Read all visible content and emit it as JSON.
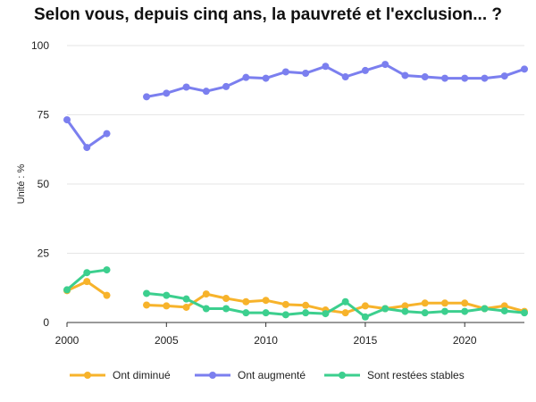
{
  "chart_data": {
    "type": "line",
    "title": "Selon vous, depuis cinq ans, la pauvreté et l'exclusion... ?",
    "xlabel": "",
    "ylabel": "Unité : %",
    "xlim": [
      2000,
      2023
    ],
    "ylim": [
      0,
      100
    ],
    "x_ticks": [
      2000,
      2005,
      2010,
      2015,
      2020
    ],
    "y_ticks": [
      0,
      25,
      50,
      75,
      100
    ],
    "grid": "horizontal",
    "legend_position": "bottom",
    "x": [
      2000,
      2001,
      2002,
      2003,
      2004,
      2005,
      2006,
      2007,
      2008,
      2009,
      2010,
      2011,
      2012,
      2013,
      2014,
      2015,
      2016,
      2017,
      2018,
      2019,
      2020,
      2021,
      2022,
      2023
    ],
    "series": [
      {
        "name": "Ont diminué",
        "color": "#F7B32B",
        "values": [
          11.5,
          14.8,
          9.8,
          null,
          6.3,
          6.0,
          5.5,
          10.3,
          8.7,
          7.5,
          8.0,
          6.5,
          6.2,
          4.5,
          3.5,
          6.0,
          5.0,
          6.0,
          7.0,
          7.0,
          7.0,
          5.0,
          6.0,
          4.0
        ]
      },
      {
        "name": "Ont augmenté",
        "color": "#7B7FEF",
        "values": [
          73.2,
          63.2,
          68.2,
          null,
          81.5,
          82.8,
          85.0,
          83.5,
          85.2,
          88.5,
          88.2,
          90.5,
          90.0,
          92.5,
          88.7,
          91.0,
          93.2,
          89.2,
          88.7,
          88.2,
          88.2,
          88.2,
          89.0,
          91.5
        ]
      },
      {
        "name": "Sont restées stables",
        "color": "#3CCF8E",
        "values": [
          11.8,
          18.0,
          19.0,
          null,
          10.5,
          9.8,
          8.5,
          5.0,
          5.0,
          3.5,
          3.5,
          2.8,
          3.5,
          3.2,
          7.5,
          2.0,
          5.0,
          4.0,
          3.5,
          4.0,
          4.0,
          5.0,
          4.2,
          3.5
        ]
      }
    ]
  }
}
